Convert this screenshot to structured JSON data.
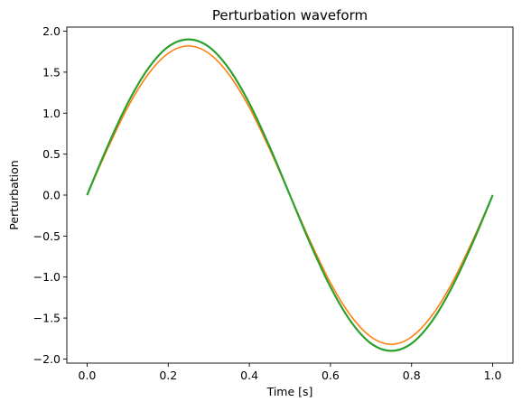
{
  "chart_data": {
    "type": "line",
    "title": "Perturbation waveform",
    "xlabel": "Time [s]",
    "ylabel": "Perturbation",
    "xlim": [
      -0.05,
      1.05
    ],
    "ylim": [
      -2.05,
      2.05
    ],
    "grid": false,
    "x_ticks": [
      0.0,
      0.2,
      0.4,
      0.6,
      0.8,
      1.0
    ],
    "x_tick_labels": [
      "0.0",
      "0.2",
      "0.4",
      "0.6",
      "0.8",
      "1.0"
    ],
    "y_ticks": [
      -2.0,
      -1.5,
      -1.0,
      -0.5,
      0.0,
      0.5,
      1.0,
      1.5,
      2.0
    ],
    "y_tick_labels": [
      "−2.0",
      "−1.5",
      "−1.0",
      "−0.5",
      "0.0",
      "0.5",
      "1.0",
      "1.5",
      "2.0"
    ],
    "series": [
      {
        "color": "#ff7f0e",
        "x": [
          0.0,
          0.05,
          0.1,
          0.15,
          0.2,
          0.25,
          0.3,
          0.35,
          0.4,
          0.45,
          0.5,
          0.55,
          0.6,
          0.65,
          0.7,
          0.75,
          0.8,
          0.85,
          0.9,
          0.95,
          1.0
        ],
        "y": [
          0.0,
          0.56,
          1.07,
          1.47,
          1.73,
          1.82,
          1.73,
          1.47,
          1.07,
          0.56,
          0.0,
          -0.56,
          -1.07,
          -1.47,
          -1.73,
          -1.82,
          -1.73,
          -1.47,
          -1.07,
          -0.56,
          0.0
        ]
      },
      {
        "color": "#2ca02c",
        "x": [
          0.0,
          0.05,
          0.1,
          0.15,
          0.2,
          0.25,
          0.3,
          0.35,
          0.4,
          0.45,
          0.5,
          0.55,
          0.6,
          0.65,
          0.7,
          0.75,
          0.8,
          0.85,
          0.9,
          0.95,
          1.0
        ],
        "y": [
          0.0,
          0.59,
          1.12,
          1.54,
          1.81,
          1.9,
          1.81,
          1.54,
          1.12,
          0.59,
          0.0,
          -0.59,
          -1.12,
          -1.54,
          -1.81,
          -1.9,
          -1.81,
          -1.54,
          -1.12,
          -0.59,
          0.0
        ]
      }
    ]
  }
}
